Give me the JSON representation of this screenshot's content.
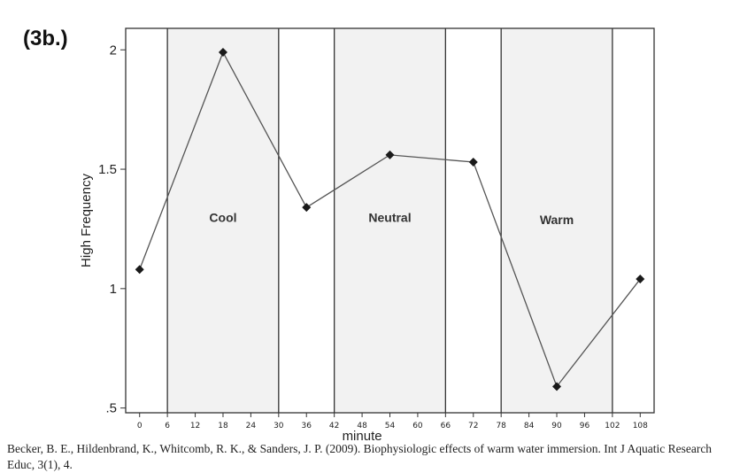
{
  "panel_label": "(3b.)",
  "citation": "Becker, B. E., Hildenbrand, K., Whitcomb, R. K., & Sanders, J. P. (2009). Biophysiologic effects of warm water immersion. Int J Aquatic Research Educ, 3(1), 4.",
  "chart_data": {
    "type": "line",
    "xlabel": "minute",
    "ylabel": "High Frequency",
    "xlim": [
      -3,
      111
    ],
    "ylim": [
      0.48,
      2.09
    ],
    "x_ticks": [
      0,
      6,
      12,
      18,
      24,
      30,
      36,
      42,
      48,
      54,
      60,
      66,
      72,
      78,
      84,
      90,
      96,
      102,
      108
    ],
    "y_ticks": [
      0.5,
      1,
      1.5,
      2
    ],
    "y_tick_labels": [
      ".5",
      "1",
      "1.5",
      "2"
    ],
    "grid": false,
    "series": [
      {
        "x": [
          0,
          18,
          36,
          54,
          72,
          90,
          108
        ],
        "values": [
          1.08,
          1.99,
          1.34,
          1.56,
          1.53,
          0.59,
          1.04
        ]
      }
    ],
    "regions": [
      {
        "label": "Cool",
        "x_start": 6,
        "x_end": 30,
        "label_y": 1.28,
        "color": "#f2f2f2"
      },
      {
        "label": "Neutral",
        "x_start": 42,
        "x_end": 66,
        "label_y": 1.28,
        "color": "#f2f2f2"
      },
      {
        "label": "Warm",
        "x_start": 78,
        "x_end": 102,
        "label_y": 1.27,
        "color": "#f2f2f2"
      }
    ],
    "vertical_lines": [
      6,
      30,
      42,
      66,
      78,
      102
    ],
    "colors": {
      "line": "#555555",
      "marker": "#1a1a1a",
      "frame": "#333333"
    }
  }
}
